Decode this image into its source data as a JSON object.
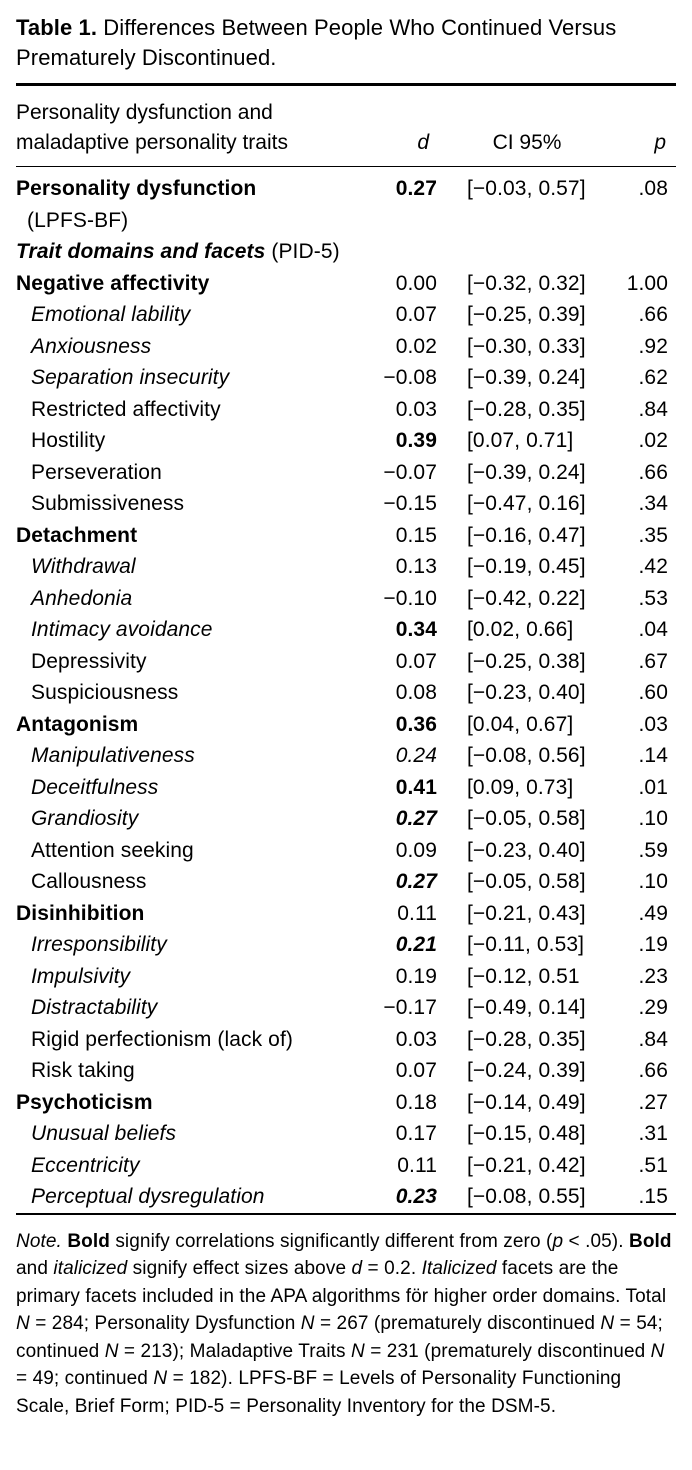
{
  "colors": {
    "background": "#ffffff",
    "text": "#000000",
    "rule": "#000000"
  },
  "title": [
    {
      "t": "Table 1.",
      "b": true
    },
    {
      "t": "  Differences Between People Who Continued Versus Prematurely Discontinued."
    }
  ],
  "header": {
    "col1_line1": "Personality dysfunction and",
    "col1_line2": "maladaptive personality traits",
    "d": "d",
    "ci": "CI 95%",
    "p": "p"
  },
  "rows": [
    {
      "seg": [
        {
          "t": "Personality dysfunction",
          "b": true
        }
      ],
      "l2": "(LPFS-BF)",
      "d": "0.27",
      "ds": "b",
      "ci": "[−0.03, 0.57]",
      "p": ".08"
    },
    {
      "seg": [
        {
          "t": "Trait domains and facets",
          "b": true,
          "i": true
        },
        {
          "t": " (PID-5)"
        }
      ],
      "d": "",
      "ds": "n",
      "ci": "",
      "p": ""
    },
    {
      "seg": [
        {
          "t": "Negative affectivity",
          "b": true
        }
      ],
      "d": "0.00",
      "ds": "n",
      "ci": "[−0.32, 0.32]",
      "p": "1.00"
    },
    {
      "seg": [
        {
          "t": "Emotional lability",
          "i": true
        }
      ],
      "ind": true,
      "d": "0.07",
      "ds": "n",
      "ci": "[−0.25, 0.39]",
      "p": ".66"
    },
    {
      "seg": [
        {
          "t": "Anxiousness",
          "i": true
        }
      ],
      "ind": true,
      "d": "0.02",
      "ds": "n",
      "ci": "[−0.30, 0.33]",
      "p": ".92"
    },
    {
      "seg": [
        {
          "t": "Separation insecurity",
          "i": true
        }
      ],
      "ind": true,
      "d": "−0.08",
      "ds": "n",
      "ci": "[−0.39, 0.24]",
      "p": ".62"
    },
    {
      "seg": [
        {
          "t": "Restricted affectivity"
        }
      ],
      "ind": true,
      "d": "0.03",
      "ds": "n",
      "ci": "[−0.28, 0.35]",
      "p": ".84"
    },
    {
      "seg": [
        {
          "t": "Hostility"
        }
      ],
      "ind": true,
      "d": "0.39",
      "ds": "b",
      "ci": "[0.07, 0.71]",
      "p": ".02"
    },
    {
      "seg": [
        {
          "t": "Perseveration"
        }
      ],
      "ind": true,
      "d": "−0.07",
      "ds": "n",
      "ci": "[−0.39, 0.24]",
      "p": ".66"
    },
    {
      "seg": [
        {
          "t": "Submissiveness"
        }
      ],
      "ind": true,
      "d": "−0.15",
      "ds": "n",
      "ci": "[−0.47, 0.16]",
      "p": ".34"
    },
    {
      "seg": [
        {
          "t": "Detachment",
          "b": true
        }
      ],
      "d": "0.15",
      "ds": "n",
      "ci": "[−0.16, 0.47]",
      "p": ".35"
    },
    {
      "seg": [
        {
          "t": "Withdrawal",
          "i": true
        }
      ],
      "ind": true,
      "d": "0.13",
      "ds": "n",
      "ci": "[−0.19, 0.45]",
      "p": ".42"
    },
    {
      "seg": [
        {
          "t": "Anhedonia",
          "i": true
        }
      ],
      "ind": true,
      "d": "−0.10",
      "ds": "n",
      "ci": "[−0.42, 0.22]",
      "p": ".53"
    },
    {
      "seg": [
        {
          "t": "Intimacy avoidance",
          "i": true
        }
      ],
      "ind": true,
      "d": "0.34",
      "ds": "b",
      "ci": "[0.02, 0.66]",
      "p": ".04"
    },
    {
      "seg": [
        {
          "t": "Depressivity"
        }
      ],
      "ind": true,
      "d": "0.07",
      "ds": "n",
      "ci": "[−0.25, 0.38]",
      "p": ".67"
    },
    {
      "seg": [
        {
          "t": "Suspiciousness"
        }
      ],
      "ind": true,
      "d": "0.08",
      "ds": "n",
      "ci": "[−0.23, 0.40]",
      "p": ".60"
    },
    {
      "seg": [
        {
          "t": "Antagonism",
          "b": true
        }
      ],
      "d": "0.36",
      "ds": "b",
      "ci": "[0.04, 0.67]",
      "p": ".03"
    },
    {
      "seg": [
        {
          "t": "Manipulativeness",
          "i": true
        }
      ],
      "ind": true,
      "d": "0.24",
      "ds": "i",
      "ci": "[−0.08, 0.56]",
      "p": ".14"
    },
    {
      "seg": [
        {
          "t": "Deceitfulness",
          "i": true
        }
      ],
      "ind": true,
      "d": "0.41",
      "ds": "b",
      "ci": "[0.09, 0.73]",
      "p": ".01"
    },
    {
      "seg": [
        {
          "t": "Grandiosity",
          "i": true
        }
      ],
      "ind": true,
      "d": "0.27",
      "ds": "bi",
      "ci": "[−0.05, 0.58]",
      "p": ".10"
    },
    {
      "seg": [
        {
          "t": "Attention seeking"
        }
      ],
      "ind": true,
      "d": "0.09",
      "ds": "n",
      "ci": "[−0.23, 0.40]",
      "p": ".59"
    },
    {
      "seg": [
        {
          "t": "Callousness"
        }
      ],
      "ind": true,
      "d": "0.27",
      "ds": "bi",
      "ci": "[−0.05, 0.58]",
      "p": ".10"
    },
    {
      "seg": [
        {
          "t": "Disinhibition",
          "b": true
        }
      ],
      "d": "0.11",
      "ds": "n",
      "ci": "[−0.21, 0.43]",
      "p": ".49"
    },
    {
      "seg": [
        {
          "t": "Irresponsibility",
          "i": true
        }
      ],
      "ind": true,
      "d": "0.21",
      "ds": "bi",
      "ci": "[−0.11, 0.53]",
      "p": ".19"
    },
    {
      "seg": [
        {
          "t": "Impulsivity",
          "i": true
        }
      ],
      "ind": true,
      "d": "0.19",
      "ds": "n",
      "ci": "[−0.12, 0.51",
      "p": ".23"
    },
    {
      "seg": [
        {
          "t": "Distractability",
          "i": true
        }
      ],
      "ind": true,
      "d": "−0.17",
      "ds": "n",
      "ci": "[−0.49, 0.14]",
      "p": ".29"
    },
    {
      "seg": [
        {
          "t": "Rigid perfectionism (lack of)"
        }
      ],
      "ind": true,
      "d": "0.03",
      "ds": "n",
      "ci": "[−0.28, 0.35]",
      "p": ".84"
    },
    {
      "seg": [
        {
          "t": "Risk taking"
        }
      ],
      "ind": true,
      "d": "0.07",
      "ds": "n",
      "ci": "[−0.24, 0.39]",
      "p": ".66"
    },
    {
      "seg": [
        {
          "t": "Psychoticism",
          "b": true
        }
      ],
      "d": "0.18",
      "ds": "n",
      "ci": "[−0.14, 0.49]",
      "p": ".27"
    },
    {
      "seg": [
        {
          "t": "Unusual beliefs",
          "i": true
        }
      ],
      "ind": true,
      "d": "0.17",
      "ds": "n",
      "ci": "[−0.15, 0.48]",
      "p": ".31"
    },
    {
      "seg": [
        {
          "t": "Eccentricity",
          "i": true
        }
      ],
      "ind": true,
      "d": "0.11",
      "ds": "n",
      "ci": "[−0.21, 0.42]",
      "p": ".51"
    },
    {
      "seg": [
        {
          "t": "Perceptual dysregulation",
          "i": true
        }
      ],
      "ind": true,
      "d": "0.23",
      "ds": "bi",
      "ci": "[−0.08, 0.55]",
      "p": ".15"
    }
  ],
  "note": [
    {
      "t": "Note.",
      "i": true
    },
    {
      "t": " "
    },
    {
      "t": "Bold",
      "b": true
    },
    {
      "t": " signify correlations significantly different from zero ("
    },
    {
      "t": "p",
      "i": true
    },
    {
      "t": " < .05). "
    },
    {
      "t": "Bold",
      "b": true
    },
    {
      "t": " and "
    },
    {
      "t": "italicized",
      "i": true
    },
    {
      "t": " signify effect sizes above "
    },
    {
      "t": "d",
      "i": true
    },
    {
      "t": " = 0.2. "
    },
    {
      "t": "Italicized",
      "i": true
    },
    {
      "t": " facets are the primary facets included in the APA algorithms för higher order domains. Total "
    },
    {
      "t": "N",
      "i": true
    },
    {
      "t": " = 284; Personality Dysfunction "
    },
    {
      "t": "N",
      "i": true
    },
    {
      "t": " = 267 (prematurely discontinued "
    },
    {
      "t": "N",
      "i": true
    },
    {
      "t": " = 54; continued "
    },
    {
      "t": "N",
      "i": true
    },
    {
      "t": " = 213); Maladaptive Traits "
    },
    {
      "t": "N",
      "i": true
    },
    {
      "t": " = 231 (prematurely discontinued "
    },
    {
      "t": "N",
      "i": true
    },
    {
      "t": " = 49; continued "
    },
    {
      "t": "N",
      "i": true
    },
    {
      "t": " = 182). LPFS-BF = Levels of Personality Functioning Scale, Brief Form; PID-5 = Personality Inventory for the DSM-5."
    }
  ]
}
